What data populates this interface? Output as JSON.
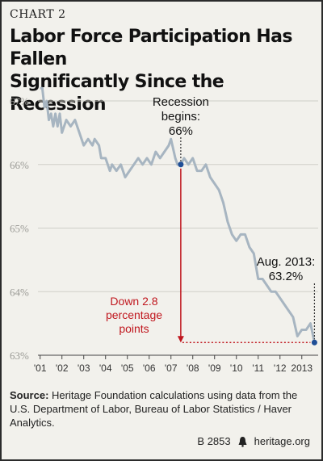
{
  "chart_label": "CHART 2",
  "title_line1": "Labor Force Participation Has Fallen",
  "title_line2": "Significantly Since the Recession",
  "source_label": "Source:",
  "source_text": " Heritage Foundation calculations using data from the U.S. Department of Labor, Bureau of Labor Statistics / Haver Analytics.",
  "footer_code": "B 2853",
  "footer_site": "heritage.org",
  "colors": {
    "line": "#a7b5c1",
    "marker": "#1f4e96",
    "annotation_red": "#c0171e",
    "background": "#f2f1ec"
  },
  "chart_data": {
    "type": "line",
    "y_unit": "%",
    "ylim": [
      63,
      67
    ],
    "y_ticks": [
      "63%",
      "64%",
      "65%",
      "66%",
      "67%"
    ],
    "y_tick_values": [
      63,
      64,
      65,
      66,
      67
    ],
    "xlim": [
      2000.9,
      2013.75
    ],
    "x_ticks": [
      "'01",
      "'02",
      "'03",
      "'04",
      "'05",
      "'06",
      "'07",
      "'08",
      "'09",
      "'10",
      "'11",
      "'12",
      "2013"
    ],
    "x_tick_values": [
      2001,
      2002,
      2003,
      2004,
      2005,
      2006,
      2007,
      2008,
      2009,
      2010,
      2011,
      2012,
      2013
    ],
    "series": [
      {
        "values": [
          [
            2001.0,
            67.2
          ],
          [
            2001.1,
            67.2
          ],
          [
            2001.2,
            66.9
          ],
          [
            2001.3,
            67.0
          ],
          [
            2001.4,
            66.7
          ],
          [
            2001.5,
            66.8
          ],
          [
            2001.6,
            66.6
          ],
          [
            2001.7,
            66.8
          ],
          [
            2001.8,
            66.6
          ],
          [
            2001.9,
            66.8
          ],
          [
            2002.0,
            66.5
          ],
          [
            2002.2,
            66.7
          ],
          [
            2002.4,
            66.6
          ],
          [
            2002.6,
            66.7
          ],
          [
            2002.8,
            66.5
          ],
          [
            2003.0,
            66.3
          ],
          [
            2003.2,
            66.4
          ],
          [
            2003.4,
            66.3
          ],
          [
            2003.5,
            66.4
          ],
          [
            2003.7,
            66.3
          ],
          [
            2003.8,
            66.1
          ],
          [
            2004.0,
            66.1
          ],
          [
            2004.2,
            65.9
          ],
          [
            2004.3,
            66.0
          ],
          [
            2004.5,
            65.9
          ],
          [
            2004.7,
            66.0
          ],
          [
            2004.9,
            65.8
          ],
          [
            2005.1,
            65.9
          ],
          [
            2005.3,
            66.0
          ],
          [
            2005.5,
            66.1
          ],
          [
            2005.7,
            66.0
          ],
          [
            2005.9,
            66.1
          ],
          [
            2006.1,
            66.0
          ],
          [
            2006.3,
            66.2
          ],
          [
            2006.5,
            66.1
          ],
          [
            2006.7,
            66.2
          ],
          [
            2006.9,
            66.3
          ],
          [
            2007.0,
            66.4
          ],
          [
            2007.2,
            66.1
          ],
          [
            2007.3,
            66.0
          ],
          [
            2007.45,
            66.0
          ],
          [
            2007.6,
            66.1
          ],
          [
            2007.8,
            66.0
          ],
          [
            2008.0,
            66.1
          ],
          [
            2008.2,
            65.9
          ],
          [
            2008.4,
            65.9
          ],
          [
            2008.6,
            66.0
          ],
          [
            2008.8,
            65.8
          ],
          [
            2009.0,
            65.7
          ],
          [
            2009.2,
            65.6
          ],
          [
            2009.4,
            65.4
          ],
          [
            2009.6,
            65.1
          ],
          [
            2009.8,
            64.9
          ],
          [
            2010.0,
            64.8
          ],
          [
            2010.2,
            64.9
          ],
          [
            2010.4,
            64.9
          ],
          [
            2010.6,
            64.7
          ],
          [
            2010.8,
            64.6
          ],
          [
            2011.0,
            64.2
          ],
          [
            2011.2,
            64.2
          ],
          [
            2011.4,
            64.1
          ],
          [
            2011.6,
            64.0
          ],
          [
            2011.8,
            64.0
          ],
          [
            2012.0,
            63.9
          ],
          [
            2012.2,
            63.8
          ],
          [
            2012.4,
            63.7
          ],
          [
            2012.6,
            63.6
          ],
          [
            2012.8,
            63.3
          ],
          [
            2013.0,
            63.4
          ],
          [
            2013.2,
            63.4
          ],
          [
            2013.4,
            63.5
          ],
          [
            2013.58,
            63.2
          ]
        ]
      }
    ],
    "annotations": {
      "recession_line1": "Recession",
      "recession_line2": "begins:",
      "recession_value": "66%",
      "recession_point": [
        2007.45,
        66.0
      ],
      "latest_line1": "Aug. 2013:",
      "latest_value": "63.2%",
      "latest_point": [
        2013.58,
        63.2
      ],
      "drop_line1": "Down 2.8",
      "drop_line2": "percentage",
      "drop_line3": "points"
    }
  }
}
